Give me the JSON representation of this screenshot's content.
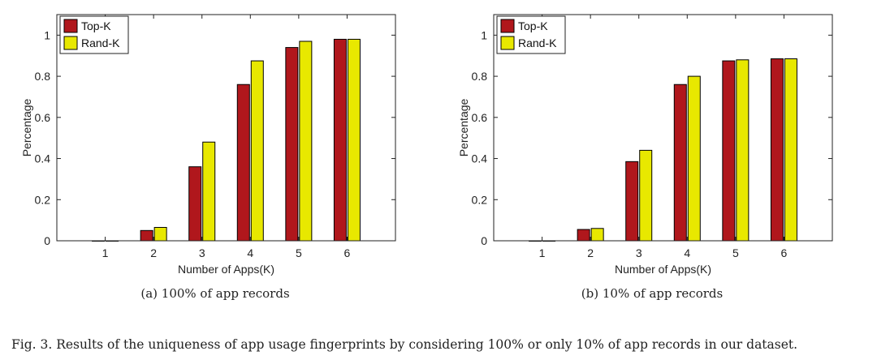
{
  "chart_data": [
    {
      "type": "bar",
      "categories": [
        "1",
        "2",
        "3",
        "4",
        "5",
        "6"
      ],
      "series": [
        {
          "name": "Top-K",
          "values": [
            0.0,
            0.05,
            0.36,
            0.76,
            0.94,
            0.98
          ],
          "color": "#b0171c"
        },
        {
          "name": "Rand-K",
          "values": [
            0.0,
            0.065,
            0.48,
            0.875,
            0.97,
            0.98
          ],
          "color": "#e8e800"
        }
      ],
      "xlabel": "Number of Apps(K)",
      "ylabel": "Percentage",
      "ylim": [
        0,
        1.1
      ],
      "yticks": [
        "0",
        "0.2",
        "0.4",
        "0.6",
        "0.8",
        "1"
      ],
      "legend": "top-left",
      "caption": "(a)  100% of app records"
    },
    {
      "type": "bar",
      "categories": [
        "1",
        "2",
        "3",
        "4",
        "5",
        "6"
      ],
      "series": [
        {
          "name": "Top-K",
          "values": [
            0.0,
            0.055,
            0.385,
            0.76,
            0.875,
            0.885
          ],
          "color": "#b0171c"
        },
        {
          "name": "Rand-K",
          "values": [
            0.0,
            0.06,
            0.44,
            0.8,
            0.88,
            0.885
          ],
          "color": "#e8e800"
        }
      ],
      "xlabel": "Number of Apps(K)",
      "ylabel": "Percentage",
      "ylim": [
        0,
        1.1
      ],
      "yticks": [
        "0",
        "0.2",
        "0.4",
        "0.6",
        "0.8",
        "1"
      ],
      "legend": "top-left",
      "caption": "(b)  10% of app records"
    }
  ],
  "figure_caption": "Fig. 3.  Results of the uniqueness of app usage fingerprints by considering 100% or only 10% of app records in our dataset."
}
